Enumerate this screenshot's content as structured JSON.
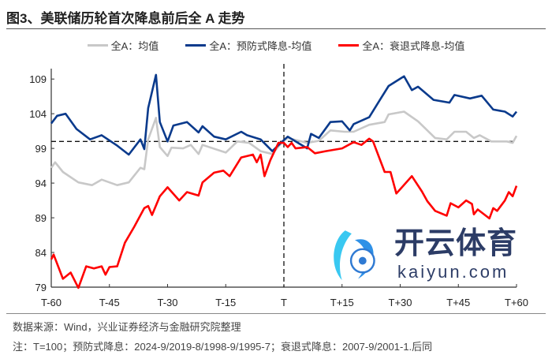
{
  "title": "图3、美联储历轮首次降息前后全 A 走势",
  "footer": {
    "source": "数据来源：Wind，兴业证券经济与金融研究院整理",
    "note": "注：T=100；预防式降息：2024-9/2019-8/1998-9/1995-7；衰退式降息：2007-9/2001-1.后同"
  },
  "watermark": {
    "cn": "开云体育",
    "en": "kaiyun.com"
  },
  "chart_data": {
    "type": "line",
    "title": "图3、美联储历轮首次降息前后全 A 走势",
    "xlabel": "",
    "ylabel": "",
    "xlim": [
      -60,
      60
    ],
    "ylim": [
      79,
      110.5
    ],
    "x_ticks": [
      -60,
      -45,
      -30,
      -15,
      0,
      15,
      30,
      45,
      60
    ],
    "x_tick_labels": [
      "T-60",
      "T-45",
      "T-30",
      "T-15",
      "T",
      "T+15",
      "T+30",
      "T+45",
      "T+60"
    ],
    "y_ticks": [
      79,
      84,
      89,
      94,
      99,
      104,
      109
    ],
    "y_tick_labels": [
      "79",
      "84",
      "89",
      "94",
      "99",
      "104",
      "109"
    ],
    "reference_lines": {
      "horizontal": 100,
      "vertical": 0
    },
    "legend_position": "top",
    "series": [
      {
        "name": "全A：均值",
        "color": "#c8c8c8",
        "points": [
          [
            -60,
            96.2
          ],
          [
            -59,
            97.0
          ],
          [
            -57,
            95.6
          ],
          [
            -53,
            94.1
          ],
          [
            -49.5,
            93.7
          ],
          [
            -47,
            94.5
          ],
          [
            -43,
            93.7
          ],
          [
            -40,
            94.1
          ],
          [
            -37,
            96.2
          ],
          [
            -36,
            96.0
          ],
          [
            -35,
            100.3
          ],
          [
            -33,
            103.4
          ],
          [
            -32,
            99.2
          ],
          [
            -30,
            97.9
          ],
          [
            -29,
            99.1
          ],
          [
            -26,
            99.0
          ],
          [
            -24,
            99.5
          ],
          [
            -22,
            98.2
          ],
          [
            -21,
            99.5
          ],
          [
            -15,
            98.4
          ],
          [
            -12,
            100.0
          ],
          [
            -9,
            99.8
          ],
          [
            -6,
            98.6
          ],
          [
            -3,
            98.2
          ],
          [
            -0.6,
            99.8
          ],
          [
            1,
            100.5
          ],
          [
            6,
            99.8
          ],
          [
            9,
            100.1
          ],
          [
            12,
            101.6
          ],
          [
            15.6,
            101.4
          ],
          [
            18,
            101.4
          ],
          [
            22,
            102.4
          ],
          [
            26,
            102.8
          ],
          [
            27,
            103.9
          ],
          [
            31,
            104.3
          ],
          [
            34.6,
            102.9
          ],
          [
            39,
            100.5
          ],
          [
            42,
            100.3
          ],
          [
            44,
            101.4
          ],
          [
            47,
            101.4
          ],
          [
            49,
            100.5
          ],
          [
            50.5,
            100.9
          ],
          [
            53.5,
            100.0
          ],
          [
            57.5,
            100.0
          ],
          [
            59,
            99.8
          ],
          [
            60,
            100.8
          ]
        ]
      },
      {
        "name": "全A：预防式降息-均值",
        "color": "#0a3a8c",
        "points": [
          [
            -60,
            102.6
          ],
          [
            -58.5,
            103.7
          ],
          [
            -56.3,
            104.0
          ],
          [
            -53.5,
            101.8
          ],
          [
            -50,
            100.3
          ],
          [
            -47,
            100.9
          ],
          [
            -43,
            99.4
          ],
          [
            -40,
            98.1
          ],
          [
            -37,
            100.3
          ],
          [
            -36,
            98.9
          ],
          [
            -35,
            104.8
          ],
          [
            -33,
            109.6
          ],
          [
            -32,
            102.8
          ],
          [
            -30,
            100.0
          ],
          [
            -28.5,
            102.3
          ],
          [
            -25,
            102.8
          ],
          [
            -22,
            101.3
          ],
          [
            -21,
            102.2
          ],
          [
            -18,
            100.7
          ],
          [
            -15,
            100.3
          ],
          [
            -11,
            101.4
          ],
          [
            -9.5,
            100.9
          ],
          [
            -6,
            100.3
          ],
          [
            -3,
            98.6
          ],
          [
            -0.6,
            99.9
          ],
          [
            1,
            100.7
          ],
          [
            6,
            99.0
          ],
          [
            7,
            101.1
          ],
          [
            9,
            100.5
          ],
          [
            12,
            102.8
          ],
          [
            15,
            102.9
          ],
          [
            17,
            101.6
          ],
          [
            18,
            102.5
          ],
          [
            22,
            103.5
          ],
          [
            25,
            106.2
          ],
          [
            27,
            108.0
          ],
          [
            31,
            109.4
          ],
          [
            33,
            107.4
          ],
          [
            34.6,
            107.9
          ],
          [
            38.6,
            106.0
          ],
          [
            42.7,
            105.6
          ],
          [
            44,
            106.7
          ],
          [
            48,
            106.2
          ],
          [
            51,
            106.6
          ],
          [
            54,
            104.6
          ],
          [
            57,
            104.3
          ],
          [
            59,
            103.6
          ],
          [
            60,
            104.3
          ]
        ]
      },
      {
        "name": "全A：衰退式降息-均值",
        "color": "#ff0000",
        "points": [
          [
            -60,
            83.0
          ],
          [
            -59.4,
            83.7
          ],
          [
            -57,
            80.2
          ],
          [
            -55,
            81.1
          ],
          [
            -53,
            78.9
          ],
          [
            -51,
            82.0
          ],
          [
            -49,
            81.7
          ],
          [
            -47,
            82.0
          ],
          [
            -46,
            80.8
          ],
          [
            -45,
            81.9
          ],
          [
            -43,
            82.0
          ],
          [
            -41,
            85.4
          ],
          [
            -38.6,
            87.7
          ],
          [
            -36,
            90.4
          ],
          [
            -35,
            90.7
          ],
          [
            -34,
            89.4
          ],
          [
            -32,
            92.1
          ],
          [
            -30,
            93.4
          ],
          [
            -27,
            91.5
          ],
          [
            -25,
            92.7
          ],
          [
            -22,
            92.2
          ],
          [
            -21,
            94.1
          ],
          [
            -18,
            95.5
          ],
          [
            -15.6,
            95.8
          ],
          [
            -14,
            95.0
          ],
          [
            -11,
            97.7
          ],
          [
            -8,
            98.1
          ],
          [
            -7,
            97.0
          ],
          [
            -6,
            98.1
          ],
          [
            -5,
            95.0
          ],
          [
            -3.5,
            97.3
          ],
          [
            -1.4,
            99.8
          ],
          [
            0,
            99.8
          ],
          [
            1,
            99.2
          ],
          [
            2,
            99.8
          ],
          [
            3,
            99.0
          ],
          [
            6,
            99.2
          ],
          [
            8,
            98.3
          ],
          [
            10.8,
            98.6
          ],
          [
            15,
            99.0
          ],
          [
            18,
            99.9
          ],
          [
            20,
            99.5
          ],
          [
            22,
            100.4
          ],
          [
            23,
            100.0
          ],
          [
            26,
            95.6
          ],
          [
            27.5,
            95.6
          ],
          [
            29,
            92.5
          ],
          [
            33,
            95.0
          ],
          [
            35.6,
            92.8
          ],
          [
            37,
            91.4
          ],
          [
            39,
            90.0
          ],
          [
            42,
            89.3
          ],
          [
            43,
            91.1
          ],
          [
            45,
            90.5
          ],
          [
            47,
            91.5
          ],
          [
            48.5,
            91.0
          ],
          [
            49,
            89.5
          ],
          [
            50,
            90.2
          ],
          [
            53,
            88.9
          ],
          [
            54,
            90.4
          ],
          [
            55,
            90.0
          ],
          [
            57,
            91.5
          ],
          [
            58,
            92.7
          ],
          [
            59,
            92.1
          ],
          [
            60,
            93.6
          ]
        ]
      }
    ]
  }
}
